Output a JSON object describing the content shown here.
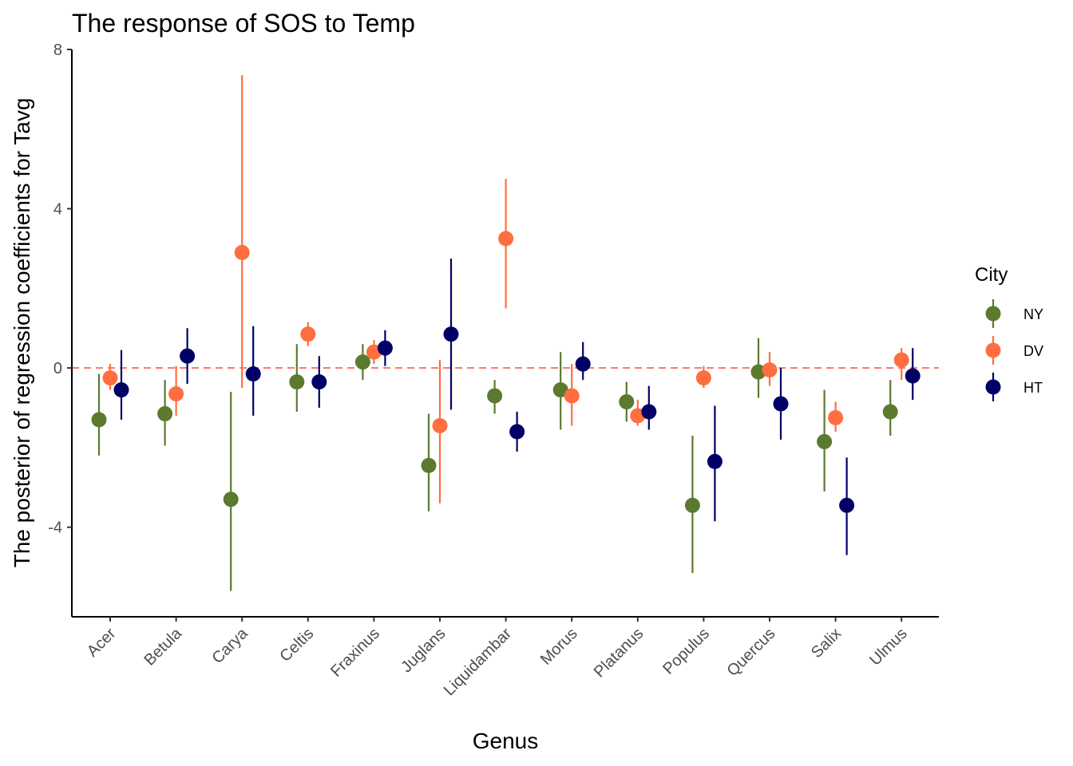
{
  "chart_data": {
    "type": "scatter",
    "subtype": "point-range",
    "title": "The response of SOS to Temp",
    "xlabel": "Genus",
    "ylabel": "The posterior of regression coefficients for Tavg",
    "categories": [
      "Acer",
      "Betula",
      "Carya",
      "Celtis",
      "Fraxinus",
      "Juglans",
      "Liquidambar",
      "Morus",
      "Platanus",
      "Populus",
      "Quercus",
      "Salix",
      "Ulmus"
    ],
    "ylim": [
      -6.25,
      8
    ],
    "yticks": [
      -4,
      0,
      4,
      8
    ],
    "reference_line": {
      "y": 0,
      "style": "dashed",
      "color": "#F8766D"
    },
    "grid": false,
    "legend": {
      "title": "City",
      "position": "right"
    },
    "series": [
      {
        "name": "NY",
        "color": "#5B7A2E",
        "values": [
          -1.3,
          -1.15,
          -3.3,
          -0.35,
          0.15,
          -2.45,
          -0.7,
          -0.55,
          -0.85,
          -3.45,
          -0.1,
          -1.85,
          -1.1
        ],
        "lower": [
          -2.2,
          -1.95,
          -5.6,
          -1.1,
          -0.3,
          -3.6,
          -1.15,
          -1.55,
          -1.35,
          -5.15,
          -0.75,
          -3.1,
          -1.7
        ],
        "upper": [
          -0.15,
          -0.3,
          -0.6,
          0.6,
          0.6,
          -1.15,
          -0.3,
          0.4,
          -0.35,
          -1.7,
          0.75,
          -0.55,
          -0.3
        ]
      },
      {
        "name": "DV",
        "color": "#FF6E40",
        "values": [
          -0.25,
          -0.65,
          2.9,
          0.85,
          0.4,
          -1.45,
          3.25,
          -0.7,
          -1.2,
          -0.25,
          -0.05,
          -1.25,
          0.2
        ],
        "lower": [
          -0.55,
          -1.2,
          -0.5,
          0.55,
          0.1,
          -3.4,
          1.5,
          -1.45,
          -1.45,
          -0.5,
          -0.45,
          -1.6,
          -0.3
        ],
        "upper": [
          0.1,
          0.05,
          7.35,
          1.15,
          0.7,
          0.2,
          4.75,
          0.1,
          -0.8,
          0.05,
          0.4,
          -0.85,
          0.5
        ]
      },
      {
        "name": "HT",
        "color": "#000066",
        "values": [
          -0.55,
          0.3,
          -0.15,
          -0.35,
          0.5,
          0.85,
          -1.6,
          0.1,
          -1.1,
          -2.35,
          -0.9,
          -3.45,
          -0.2
        ],
        "lower": [
          -1.3,
          -0.4,
          -1.2,
          -1.0,
          0.05,
          -1.05,
          -2.1,
          -0.3,
          -1.55,
          -3.85,
          -1.8,
          -4.7,
          -0.8
        ],
        "upper": [
          0.45,
          1.0,
          1.05,
          0.3,
          0.95,
          2.75,
          -1.1,
          0.65,
          -0.45,
          -0.95,
          0.0,
          -2.25,
          0.5
        ]
      }
    ]
  }
}
